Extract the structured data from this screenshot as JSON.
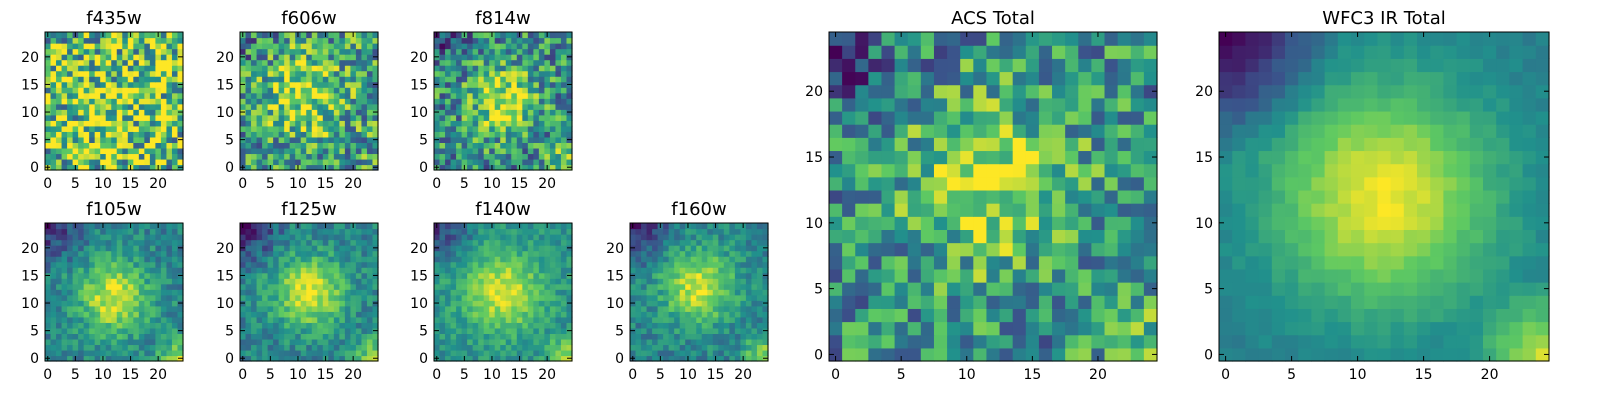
{
  "chart_data": {
    "type": "heatmap",
    "colormap": "viridis",
    "colormap_stops": [
      "#440154",
      "#3b528b",
      "#21918c",
      "#5ec962",
      "#fde725"
    ],
    "grid_size": 25,
    "panels": [
      {
        "id": "f435w",
        "title": "f435w",
        "xlim": [
          0,
          24
        ],
        "ylim": [
          0,
          24
        ],
        "xticks": [
          0,
          5,
          10,
          15,
          20
        ],
        "yticks": [
          0,
          5,
          10,
          15,
          20
        ],
        "center": [
          12,
          12
        ],
        "spread": 9,
        "peak": 0.1,
        "base": 0.68,
        "noise": 0.45,
        "corner_dark": 0.0,
        "corner_bright": 0.0,
        "seed": 11
      },
      {
        "id": "f606w",
        "title": "f606w",
        "xlim": [
          0,
          24
        ],
        "ylim": [
          0,
          24
        ],
        "xticks": [
          0,
          5,
          10,
          15,
          20
        ],
        "yticks": [
          0,
          5,
          10,
          15,
          20
        ],
        "center": [
          11,
          13
        ],
        "spread": 5,
        "peak": 0.35,
        "base": 0.55,
        "noise": 0.35,
        "corner_dark": 0.15,
        "corner_bright": 0.1,
        "seed": 23
      },
      {
        "id": "f814w",
        "title": "f814w",
        "xlim": [
          0,
          24
        ],
        "ylim": [
          0,
          24
        ],
        "xticks": [
          0,
          5,
          10,
          15,
          20
        ],
        "yticks": [
          0,
          5,
          10,
          15,
          20
        ],
        "center": [
          12,
          12
        ],
        "spread": 4,
        "peak": 0.45,
        "base": 0.5,
        "noise": 0.32,
        "corner_dark": 0.25,
        "corner_bright": 0.4,
        "seed": 37
      },
      {
        "id": "f105w",
        "title": "f105w",
        "xlim": [
          0,
          24
        ],
        "ylim": [
          0,
          24
        ],
        "xticks": [
          0,
          5,
          10,
          15,
          20
        ],
        "yticks": [
          0,
          5,
          10,
          15,
          20
        ],
        "center": [
          12,
          11
        ],
        "spread": 4.5,
        "peak": 0.5,
        "base": 0.45,
        "noise": 0.14,
        "corner_dark": 0.35,
        "corner_bright": 0.45,
        "seed": 41
      },
      {
        "id": "f125w",
        "title": "f125w",
        "xlim": [
          0,
          24
        ],
        "ylim": [
          0,
          24
        ],
        "xticks": [
          0,
          5,
          10,
          15,
          20
        ],
        "yticks": [
          0,
          5,
          10,
          15,
          20
        ],
        "center": [
          12,
          12
        ],
        "spread": 4.5,
        "peak": 0.5,
        "base": 0.45,
        "noise": 0.14,
        "corner_dark": 0.4,
        "corner_bright": 0.45,
        "seed": 53
      },
      {
        "id": "f140w",
        "title": "f140w",
        "xlim": [
          0,
          24
        ],
        "ylim": [
          0,
          24
        ],
        "xticks": [
          0,
          5,
          10,
          15,
          20
        ],
        "yticks": [
          0,
          5,
          10,
          15,
          20
        ],
        "center": [
          12,
          12
        ],
        "spread": 5,
        "peak": 0.45,
        "base": 0.5,
        "noise": 0.12,
        "corner_dark": 0.35,
        "corner_bright": 0.4,
        "seed": 67
      },
      {
        "id": "f160w",
        "title": "f160w",
        "xlim": [
          0,
          24
        ],
        "ylim": [
          0,
          24
        ],
        "xticks": [
          0,
          5,
          10,
          15,
          20
        ],
        "yticks": [
          0,
          5,
          10,
          15,
          20
        ],
        "center": [
          12,
          13
        ],
        "spread": 4.5,
        "peak": 0.5,
        "base": 0.45,
        "noise": 0.13,
        "corner_dark": 0.4,
        "corner_bright": 0.45,
        "seed": 79
      },
      {
        "id": "acs-total",
        "title": "ACS Total",
        "xlim": [
          0,
          24
        ],
        "ylim": [
          0,
          24
        ],
        "xticks": [
          0,
          5,
          10,
          15,
          20
        ],
        "yticks": [
          0,
          5,
          10,
          15,
          20
        ],
        "center": [
          12,
          13
        ],
        "spread": 4.5,
        "peak": 0.4,
        "base": 0.5,
        "noise": 0.3,
        "corner_dark": 0.3,
        "corner_bright": 0.25,
        "seed": 97
      },
      {
        "id": "wfc3-ir-total",
        "title": "WFC3 IR Total",
        "xlim": [
          0,
          24
        ],
        "ylim": [
          0,
          24
        ],
        "xticks": [
          0,
          5,
          10,
          15,
          20
        ],
        "yticks": [
          0,
          5,
          10,
          15,
          20
        ],
        "center": [
          12,
          12
        ],
        "spread": 6,
        "peak": 0.55,
        "base": 0.42,
        "noise": 0.04,
        "corner_dark": 0.45,
        "corner_bright": 0.5,
        "seed": 101
      }
    ]
  }
}
